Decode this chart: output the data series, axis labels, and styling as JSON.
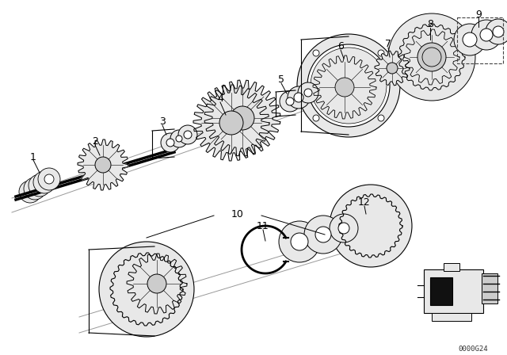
{
  "background_color": "#ffffff",
  "figure_width": 6.4,
  "figure_height": 4.48,
  "dpi": 100,
  "watermark": "0000G24",
  "line_color": "#000000",
  "light_gray": "#e8e8e8",
  "mid_gray": "#cccccc",
  "dark_gray": "#555555"
}
